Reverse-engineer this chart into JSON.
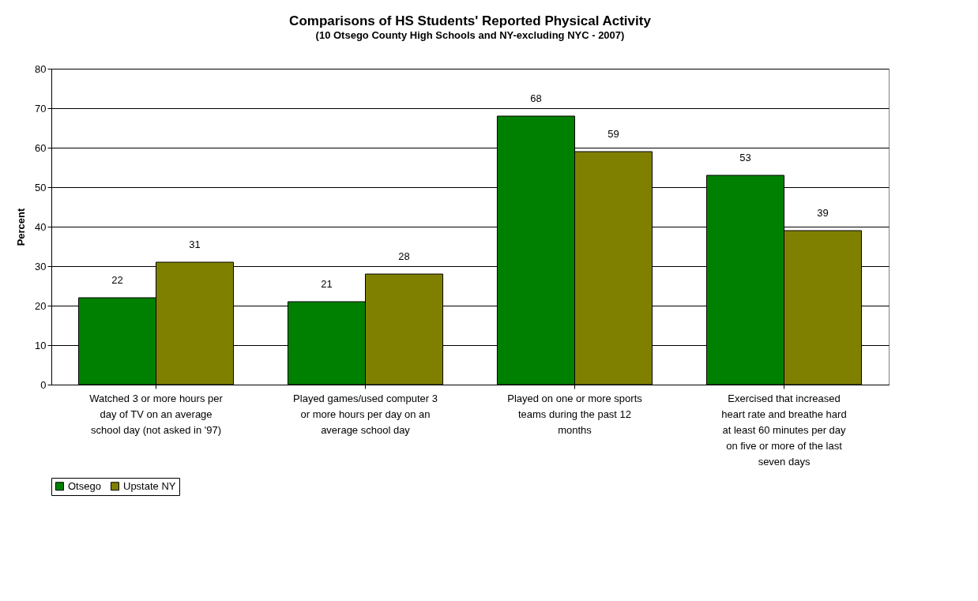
{
  "chart_data": {
    "type": "bar",
    "title": "Comparisons of HS Students' Reported Physical Activity",
    "subtitle": "(10 Otsego County High Schools and NY-excluding NYC - 2007)",
    "ylabel": "Percent",
    "categories": [
      "Watched 3 or more hours per day of TV on an average school day (not asked in '97)",
      "Played games/used computer 3 or more hours per day on an average school day",
      "Played on one or more sports teams during the past 12 months",
      "Exercised that increased heart rate and breathe hard at least 60 minutes per day on five or more of the last seven days"
    ],
    "series": [
      {
        "name": "Otsego",
        "color": "#008000",
        "values": [
          22,
          21,
          68,
          53
        ]
      },
      {
        "name": "Upstate NY",
        "color": "#808000",
        "values": [
          31,
          28,
          59,
          39
        ]
      }
    ],
    "ylim": [
      0,
      80
    ],
    "yticks": [
      0,
      10,
      20,
      30,
      40,
      50,
      60,
      70,
      80
    ],
    "grid": "y",
    "legend": "bottom",
    "data_labels": true
  }
}
